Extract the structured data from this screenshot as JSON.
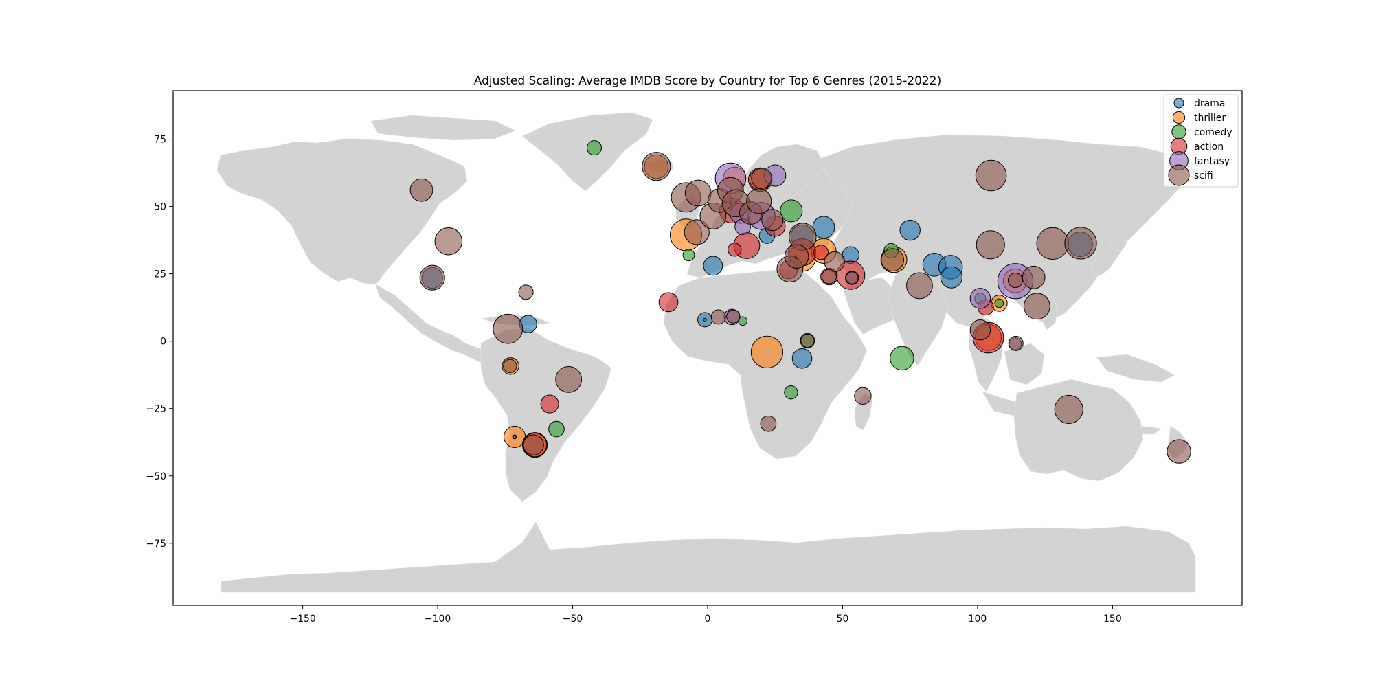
{
  "chart_data": {
    "type": "scatter",
    "subtype": "bubble-map",
    "title": "Adjusted Scaling: Average IMDB Score by Country for Top 6 Genres (2015-2022)",
    "xlabel": "",
    "ylabel": "",
    "xlim": [
      -198,
      198
    ],
    "ylim": [
      -98,
      93
    ],
    "xticks": [
      -150,
      -100,
      -50,
      0,
      50,
      100,
      150
    ],
    "yticks": [
      -75,
      -50,
      -25,
      0,
      25,
      50,
      75
    ],
    "grid": false,
    "legend_position": "top-right",
    "basemap": "world countries (light gray fill)",
    "colors": {
      "land": "#d3d3d3",
      "drama": "#1f77b4",
      "thriller": "#ff7f0e",
      "comedy": "#2ca02c",
      "action": "#d62728",
      "fantasy": "#9467bd",
      "scifi": "#8c564b"
    },
    "series": [
      {
        "name": "drama",
        "points": [
          [
            -66.5,
            6.4,
            5.5
          ],
          [
            2.0,
            28.0,
            5.8
          ],
          [
            -1.0,
            8.0,
            5.0
          ],
          [
            35.0,
            39.0,
            6.4
          ],
          [
            43.0,
            42.3,
            6.3
          ],
          [
            75.0,
            41.2,
            6.0
          ],
          [
            84.0,
            28.4,
            6.5
          ],
          [
            90.0,
            27.5,
            6.6
          ],
          [
            90.3,
            23.7,
            6.2
          ],
          [
            35.0,
            -6.4,
            5.9
          ],
          [
            22.0,
            39.2,
            5.2
          ],
          [
            53.0,
            32.0,
            5.4
          ],
          [
            138.0,
            36.0,
            6.8
          ],
          [
            -102.0,
            23.5,
            6.1
          ]
        ]
      },
      {
        "name": "thriller",
        "points": [
          [
            -8.0,
            39.5,
            8.0
          ],
          [
            22.0,
            -4.0,
            8.0
          ],
          [
            -71.5,
            -35.5,
            6.2
          ],
          [
            -64.0,
            -38.5,
            6.8
          ],
          [
            69.0,
            30.3,
            7.0
          ],
          [
            108.0,
            14.1,
            5.3
          ],
          [
            104.0,
            1.4,
            7.0
          ],
          [
            35.0,
            31.0,
            7.2
          ],
          [
            43.0,
            33.5,
            6.8
          ],
          [
            -73.0,
            -9.2,
            5.4
          ],
          [
            113.9,
            22.4,
            6.6
          ],
          [
            -19.0,
            64.8,
            6.6
          ],
          [
            10.0,
            60.5,
            6.4
          ],
          [
            19.5,
            60.0,
            6.6
          ]
        ]
      },
      {
        "name": "comedy",
        "points": [
          [
            -42.0,
            71.8,
            5.0
          ],
          [
            -7.0,
            32.0,
            4.5
          ],
          [
            68.0,
            33.6,
            5.0
          ],
          [
            72.0,
            -6.3,
            6.6
          ],
          [
            30.9,
            -19.0,
            4.8
          ],
          [
            -56.0,
            -32.6,
            5.2
          ],
          [
            13.0,
            7.5,
            4.0
          ],
          [
            31.0,
            48.4,
            6.3
          ],
          [
            -71.5,
            -35.5,
            3.2
          ],
          [
            -1.0,
            8.0,
            3.0
          ],
          [
            37.0,
            0.2,
            5.0
          ],
          [
            108.0,
            14.1,
            4.0
          ],
          [
            101.0,
            15.8,
            4.4
          ]
        ]
      },
      {
        "name": "action",
        "points": [
          [
            -14.5,
            14.5,
            5.8
          ],
          [
            14.5,
            35.5,
            7.0
          ],
          [
            10.0,
            34.0,
            4.8
          ],
          [
            25.0,
            42.7,
            6.0
          ],
          [
            45.0,
            24.0,
            5.4
          ],
          [
            53.0,
            24.5,
            7.4
          ],
          [
            -58.5,
            -23.3,
            5.6
          ],
          [
            104.0,
            1.3,
            7.8
          ],
          [
            103.0,
            12.6,
            5.2
          ],
          [
            -64.0,
            -38.5,
            6.6
          ],
          [
            30.0,
            26.5,
            5.6
          ],
          [
            19.5,
            60.0,
            6.2
          ],
          [
            35.0,
            33.0,
            7.2
          ],
          [
            9.0,
            48.5,
            6.8
          ],
          [
            42.0,
            33.0,
            5.0
          ]
        ]
      },
      {
        "name": "fantasy",
        "points": [
          [
            114.0,
            22.3,
            8.6
          ],
          [
            8.5,
            60.5,
            7.8
          ],
          [
            20.0,
            46.5,
            7.2
          ],
          [
            25.0,
            61.5,
            6.2
          ],
          [
            9.0,
            9.0,
            5.2
          ],
          [
            101.0,
            15.9,
            6.0
          ],
          [
            114.0,
            -1.0,
            4.6
          ],
          [
            12.0,
            47.5,
            6.0
          ],
          [
            13.0,
            42.5,
            5.2
          ],
          [
            53.5,
            23.5,
            4.8
          ]
        ]
      },
      {
        "name": "scifi",
        "points": [
          [
            -106.0,
            56.1,
            6.4
          ],
          [
            -96.0,
            37.1,
            7.2
          ],
          [
            -102.0,
            23.6,
            6.8
          ],
          [
            -67.3,
            18.2,
            5.0
          ],
          [
            -74.0,
            4.6,
            7.6
          ],
          [
            -73.2,
            -9.2,
            4.8
          ],
          [
            -51.5,
            -14.2,
            7.0
          ],
          [
            -64.5,
            -38.5,
            6.0
          ],
          [
            -19.0,
            64.9,
            7.4
          ],
          [
            -8.0,
            53.4,
            7.6
          ],
          [
            -3.5,
            55.0,
            7.0
          ],
          [
            -4.0,
            40.5,
            6.8
          ],
          [
            2.0,
            46.5,
            7.0
          ],
          [
            4.5,
            52.2,
            6.6
          ],
          [
            8.5,
            56.0,
            7.0
          ],
          [
            10.5,
            51.2,
            7.2
          ],
          [
            16.0,
            47.6,
            6.4
          ],
          [
            19.0,
            52.0,
            6.8
          ],
          [
            20.0,
            60.5,
            6.0
          ],
          [
            24.0,
            45.0,
            6.2
          ],
          [
            30.5,
            26.8,
            7.0
          ],
          [
            35.2,
            38.8,
            7.2
          ],
          [
            33.0,
            31.5,
            6.6
          ],
          [
            47.0,
            29.5,
            6.0
          ],
          [
            45.0,
            24.0,
            5.0
          ],
          [
            53.5,
            23.5,
            4.6
          ],
          [
            57.5,
            -20.3,
            5.4
          ],
          [
            68.5,
            30.2,
            6.4
          ],
          [
            78.5,
            20.6,
            7.0
          ],
          [
            101.0,
            4.2,
            6.0
          ],
          [
            104.8,
            35.8,
            7.4
          ],
          [
            105.0,
            61.5,
            7.8
          ],
          [
            114.0,
            22.6,
            5.0
          ],
          [
            114.2,
            -0.8,
            5.0
          ],
          [
            120.8,
            23.7,
            6.4
          ],
          [
            122.0,
            13.0,
            7.0
          ],
          [
            127.8,
            36.3,
            8.0
          ],
          [
            138.2,
            36.4,
            8.0
          ],
          [
            133.8,
            -25.3,
            7.4
          ],
          [
            174.6,
            -40.9,
            6.6
          ],
          [
            22.5,
            -30.6,
            5.2
          ],
          [
            37.0,
            0.2,
            4.8
          ],
          [
            9.5,
            9.2,
            4.8
          ],
          [
            33.0,
            31.2,
            3.0
          ],
          [
            -71.5,
            -35.5,
            2.6
          ],
          [
            4.0,
            9.0,
            5.0
          ]
        ]
      }
    ]
  }
}
